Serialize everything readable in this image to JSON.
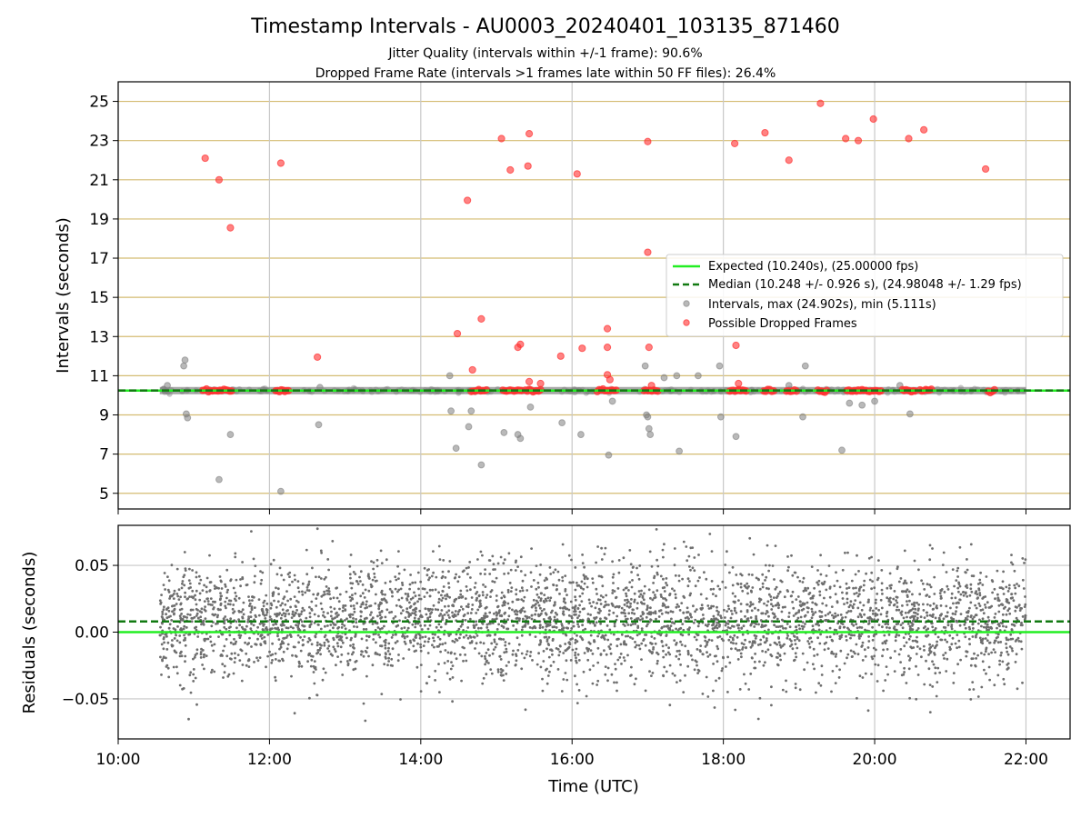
{
  "chart_data": [
    {
      "type": "scatter",
      "title": "Timestamp Intervals - AU0003_20240401_103135_871460",
      "subtitle_1": "Jitter Quality (intervals within +/-1 frame): 90.6%",
      "subtitle_2": "Dropped Frame Rate (intervals >1 frames late within 50 FF files): 26.4%",
      "ylabel": "Intervals (seconds)",
      "ylim": [
        4.2,
        26.0
      ],
      "xlim": [
        "10:00",
        "22:35"
      ],
      "y_ticks": [
        "5",
        "7",
        "9",
        "11",
        "13",
        "15",
        "17",
        "19",
        "21",
        "23",
        "25"
      ],
      "grid": "horizontal gold lines, vertical grey lines",
      "legend_position": "center-right",
      "legend": [
        {
          "label": "Expected (10.240s), (25.00000 fps)",
          "kind": "solid-line",
          "color": "#22ee22"
        },
        {
          "label": "Median (10.248 +/- 0.926 s), (24.98048 +/- 1.29 fps)",
          "kind": "dashed-line",
          "color": "#127a12"
        },
        {
          "label": "Intervals, max (24.902s), min (5.111s)",
          "kind": "marker",
          "color": "#808080"
        },
        {
          "label": "Possible Dropped Frames",
          "kind": "marker",
          "color": "#ff3030"
        }
      ],
      "expected_interval": 10.24,
      "median_interval": 10.248,
      "interval_band": {
        "time_start": "10:33",
        "time_end": "22:00",
        "y": 10.24
      },
      "series": [
        {
          "name": "Intervals, max (24.902s), min (5.111s)",
          "color": "#808080",
          "points": [
            [
              "10:36",
              10.3
            ],
            [
              "10:39",
              10.5
            ],
            [
              "10:52",
              11.5
            ],
            [
              "10:53",
              11.8
            ],
            [
              "10:54",
              9.05
            ],
            [
              "10:55",
              8.85
            ],
            [
              "11:20",
              5.7
            ],
            [
              "11:29",
              8.0
            ],
            [
              "12:09",
              5.1
            ],
            [
              "12:39",
              8.5
            ],
            [
              "12:40",
              10.4
            ],
            [
              "14:23",
              11.0
            ],
            [
              "14:24",
              9.2
            ],
            [
              "14:28",
              7.3
            ],
            [
              "14:38",
              8.4
            ],
            [
              "14:40",
              9.2
            ],
            [
              "14:48",
              6.45
            ],
            [
              "15:06",
              8.1
            ],
            [
              "15:17",
              8.0
            ],
            [
              "15:19",
              7.8
            ],
            [
              "15:27",
              9.4
            ],
            [
              "15:52",
              8.6
            ],
            [
              "16:07",
              8.0
            ],
            [
              "16:29",
              6.95
            ],
            [
              "16:32",
              9.7
            ],
            [
              "16:58",
              11.5
            ],
            [
              "16:59",
              9.0
            ],
            [
              "17:00",
              8.9
            ],
            [
              "17:01",
              8.3
            ],
            [
              "17:02",
              8.0
            ],
            [
              "17:13",
              10.9
            ],
            [
              "17:23",
              11.0
            ],
            [
              "17:25",
              7.15
            ],
            [
              "17:40",
              11.0
            ],
            [
              "17:57",
              11.5
            ],
            [
              "17:58",
              8.9
            ],
            [
              "18:10",
              7.9
            ],
            [
              "18:52",
              10.5
            ],
            [
              "19:03",
              8.9
            ],
            [
              "19:05",
              11.5
            ],
            [
              "19:34",
              7.2
            ],
            [
              "19:40",
              9.6
            ],
            [
              "19:50",
              9.5
            ],
            [
              "20:00",
              9.7
            ],
            [
              "20:20",
              10.5
            ],
            [
              "20:28",
              9.05
            ]
          ]
        },
        {
          "name": "Possible Dropped Frames",
          "color": "#ff3030",
          "points": [
            [
              "11:09",
              22.1
            ],
            [
              "11:20",
              21.0
            ],
            [
              "11:29",
              18.55
            ],
            [
              "12:09",
              21.85
            ],
            [
              "12:38",
              11.95
            ],
            [
              "14:29",
              13.15
            ],
            [
              "14:37",
              19.95
            ],
            [
              "14:41",
              11.3
            ],
            [
              "14:48",
              13.9
            ],
            [
              "15:04",
              23.1
            ],
            [
              "15:11",
              21.5
            ],
            [
              "15:17",
              12.45
            ],
            [
              "15:19",
              12.6
            ],
            [
              "15:25",
              21.7
            ],
            [
              "15:26",
              23.35
            ],
            [
              "15:26",
              10.7
            ],
            [
              "15:35",
              10.6
            ],
            [
              "15:51",
              12.0
            ],
            [
              "16:04",
              21.3
            ],
            [
              "16:08",
              12.4
            ],
            [
              "16:28",
              12.45
            ],
            [
              "16:28",
              13.4
            ],
            [
              "16:28",
              11.05
            ],
            [
              "16:30",
              10.8
            ],
            [
              "17:00",
              22.95
            ],
            [
              "17:00",
              17.3
            ],
            [
              "17:01",
              12.45
            ],
            [
              "17:03",
              10.5
            ],
            [
              "18:09",
              22.85
            ],
            [
              "18:10",
              12.55
            ],
            [
              "18:12",
              10.6
            ],
            [
              "18:33",
              23.4
            ],
            [
              "18:52",
              22.0
            ],
            [
              "19:17",
              24.9
            ],
            [
              "19:37",
              23.1
            ],
            [
              "19:47",
              23.0
            ],
            [
              "19:59",
              24.1
            ],
            [
              "20:27",
              23.1
            ],
            [
              "20:39",
              23.55
            ],
            [
              "21:28",
              21.55
            ]
          ]
        }
      ],
      "dropped_frame_clusters": [
        [
          "11:07",
          "11:30"
        ],
        [
          "12:05",
          "12:15"
        ],
        [
          "14:40",
          "14:52"
        ],
        [
          "15:05",
          "15:20"
        ],
        [
          "15:23",
          "15:35"
        ],
        [
          "16:20",
          "16:35"
        ],
        [
          "16:57",
          "17:08"
        ],
        [
          "18:05",
          "18:18"
        ],
        [
          "18:32",
          "18:40"
        ],
        [
          "18:50",
          "18:58"
        ],
        [
          "19:15",
          "19:22"
        ],
        [
          "19:38",
          "20:05"
        ],
        [
          "20:22",
          "20:32"
        ],
        [
          "20:36",
          "20:45"
        ],
        [
          "21:30",
          "21:35"
        ]
      ]
    },
    {
      "type": "scatter",
      "ylabel": "Residuals (seconds)",
      "xlabel": "Time (UTC)",
      "ylim": [
        -0.08,
        0.08
      ],
      "xlim": [
        "10:00",
        "22:35"
      ],
      "y_ticks": [
        "0.05",
        "0.00",
        "−0.05"
      ],
      "x_ticks": [
        "10:00",
        "12:00",
        "14:00",
        "16:00",
        "18:00",
        "20:00",
        "22:00"
      ],
      "grid": "on",
      "expected_residual": 0.0,
      "median_residual": 0.008,
      "residual_cloud": {
        "time_start": "10:33",
        "time_end": "22:00",
        "typical_range": [
          -0.04,
          0.05
        ],
        "extreme_range": [
          -0.078,
          0.078
        ],
        "point_count": 4000
      },
      "color": "#6e6e6e"
    }
  ],
  "colors": {
    "expected": "#22ee22",
    "median": "#127a12",
    "interval_points": "#808080",
    "dropped_points": "#ff3030",
    "hgrid_top": "#d4bc72",
    "grid": "#c8c8c8"
  }
}
